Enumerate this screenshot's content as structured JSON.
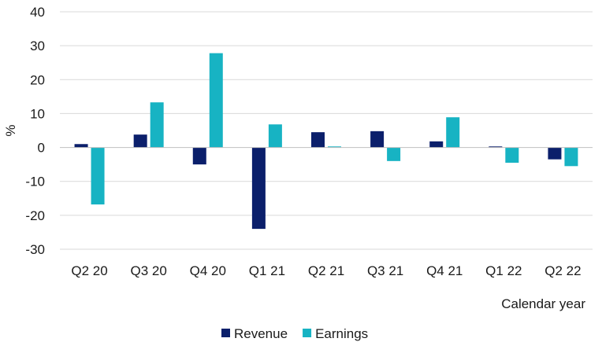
{
  "chart_data": {
    "type": "bar",
    "title": "",
    "xlabel": "Calendar year",
    "ylabel": "%",
    "ylim": [
      -30,
      40
    ],
    "yticks": [
      -30,
      -20,
      -10,
      0,
      10,
      20,
      30,
      40
    ],
    "grid": true,
    "legend_position": "bottom-center",
    "categories": [
      "Q2 20",
      "Q3 20",
      "Q4 20",
      "Q1 21",
      "Q2 21",
      "Q3 21",
      "Q4 21",
      "Q1 22",
      "Q2 22"
    ],
    "series": [
      {
        "name": "Revenue",
        "color": "#0b1f6b",
        "values": [
          1.0,
          3.8,
          -5.0,
          -24.0,
          4.5,
          4.8,
          1.8,
          0.3,
          -3.5
        ]
      },
      {
        "name": "Earnings",
        "color": "#17b3c3",
        "values": [
          -16.8,
          13.3,
          27.8,
          6.8,
          0.3,
          -4.0,
          8.9,
          -4.5,
          -5.5
        ]
      }
    ]
  }
}
